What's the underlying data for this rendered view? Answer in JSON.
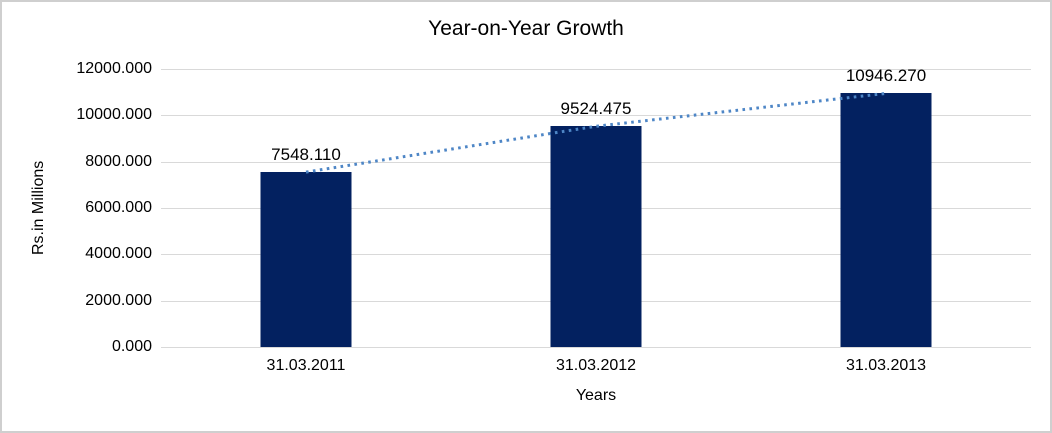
{
  "chart_data": {
    "type": "bar",
    "title": "Year-on-Year Growth",
    "categories": [
      "31.03.2011",
      "31.03.2012",
      "31.03.2013"
    ],
    "values": [
      7548.11,
      9524.475,
      10946.27
    ],
    "data_labels": [
      "7548.110",
      "9524.475",
      "10946.270"
    ],
    "xlabel": "Years",
    "ylabel": "Rs.in Millions",
    "ylim": [
      0,
      12000
    ],
    "y_tick_step": 2000,
    "y_tick_labels": [
      "12000.000",
      "10000.000",
      "8000.000",
      "6000.000",
      "4000.000",
      "2000.000",
      "0.000"
    ],
    "grid": true,
    "legend": false,
    "trendline": {
      "style": "dotted",
      "color": "#4E86C6",
      "through_points": [
        7548.11,
        9524.475,
        10946.27
      ]
    },
    "colors": {
      "bar": "#032160",
      "gridline": "#D9D9D9",
      "frame_border": "#CFCFCF",
      "text": "#000000"
    }
  }
}
